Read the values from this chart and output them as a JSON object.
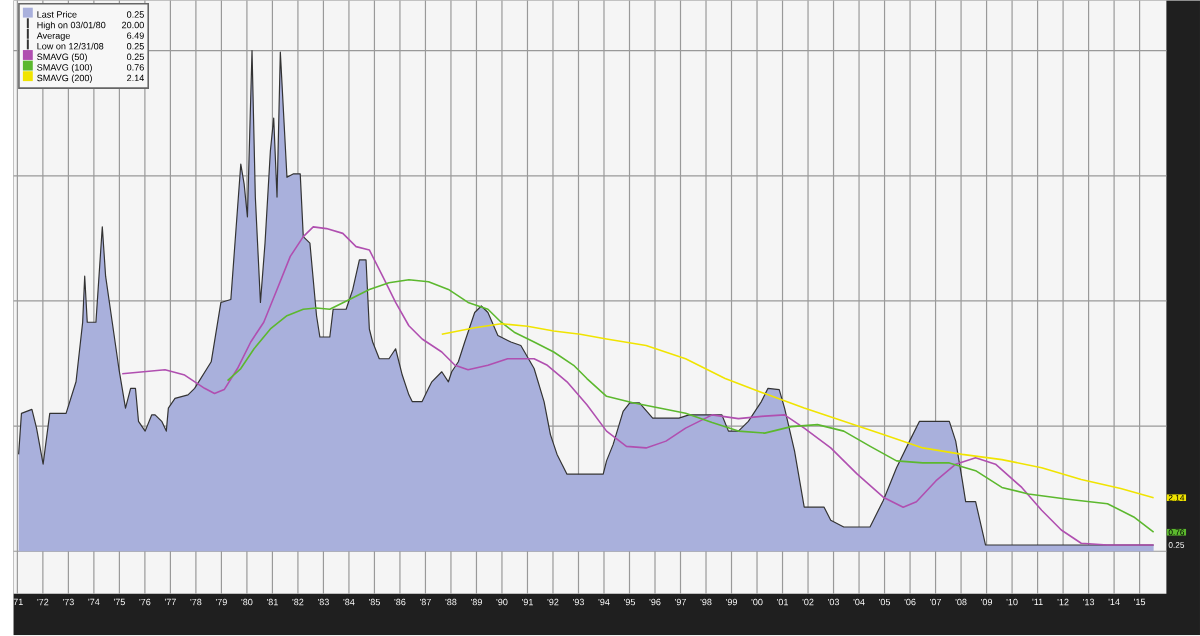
{
  "chart_data": {
    "type": "area",
    "xlim": [
      1970.85,
      2016.05
    ],
    "ylim": [
      -1.7,
      22
    ],
    "xticks": [
      {
        "value": 1971,
        "label": "'71"
      },
      {
        "value": 1972,
        "label": "'72"
      },
      {
        "value": 1973,
        "label": "'73"
      },
      {
        "value": 1974,
        "label": "'74"
      },
      {
        "value": 1975,
        "label": "'75"
      },
      {
        "value": 1976,
        "label": "'76"
      },
      {
        "value": 1977,
        "label": "'77"
      },
      {
        "value": 1978,
        "label": "'78"
      },
      {
        "value": 1979,
        "label": "'79"
      },
      {
        "value": 1980,
        "label": "'80"
      },
      {
        "value": 1981,
        "label": "'81"
      },
      {
        "value": 1982,
        "label": "'82"
      },
      {
        "value": 1983,
        "label": "'83"
      },
      {
        "value": 1984,
        "label": "'84"
      },
      {
        "value": 1985,
        "label": "'85"
      },
      {
        "value": 1986,
        "label": "'86"
      },
      {
        "value": 1987,
        "label": "'87"
      },
      {
        "value": 1988,
        "label": "'88"
      },
      {
        "value": 1989,
        "label": "'89"
      },
      {
        "value": 1990,
        "label": "'90"
      },
      {
        "value": 1991,
        "label": "'91"
      },
      {
        "value": 1992,
        "label": "'92"
      },
      {
        "value": 1993,
        "label": "'93"
      },
      {
        "value": 1994,
        "label": "'94"
      },
      {
        "value": 1995,
        "label": "'95"
      },
      {
        "value": 1996,
        "label": "'96"
      },
      {
        "value": 1997,
        "label": "'97"
      },
      {
        "value": 1998,
        "label": "'98"
      },
      {
        "value": 1999,
        "label": "'99"
      },
      {
        "value": 2000,
        "label": "'00"
      },
      {
        "value": 2001,
        "label": "'01"
      },
      {
        "value": 2002,
        "label": "'02"
      },
      {
        "value": 2003,
        "label": "'03"
      },
      {
        "value": 2004,
        "label": "'04"
      },
      {
        "value": 2005,
        "label": "'05"
      },
      {
        "value": 2006,
        "label": "'06"
      },
      {
        "value": 2007,
        "label": "'07"
      },
      {
        "value": 2008,
        "label": "'08"
      },
      {
        "value": 2009,
        "label": "'09"
      },
      {
        "value": 2010,
        "label": "'10"
      },
      {
        "value": 2011,
        "label": "'11"
      },
      {
        "value": 2012,
        "label": "'12"
      },
      {
        "value": 2013,
        "label": "'13"
      },
      {
        "value": 2014,
        "label": "'14"
      },
      {
        "value": 2015,
        "label": "'15"
      }
    ],
    "yticks": [
      {
        "value": 0.25,
        "label": "0.25"
      },
      {
        "value": 0.76,
        "label": "0.76"
      },
      {
        "value": 2.14,
        "label": "2.14"
      },
      {
        "value": 0,
        "label": null
      },
      {
        "value": 5,
        "label": null
      },
      {
        "value": 10,
        "label": null
      },
      {
        "value": 15,
        "label": null
      },
      {
        "value": 20,
        "label": null
      }
    ],
    "grid": true,
    "legend": "top left",
    "annotations": [
      "0.25",
      "High on 03/01/80",
      "20.00",
      "Average",
      "6.49",
      "Low on 12/31/08",
      "0.25",
      "0.25",
      "0.76",
      "2.14"
    ],
    "series": [
      {
        "name": "Last Price",
        "color": "#a9b0dc",
        "x": [
          1971.05,
          1971.16,
          1971.57,
          1971.75,
          1972.01,
          1972.27,
          1972.91,
          1973.3,
          1973.56,
          1973.64,
          1973.74,
          1974.08,
          1974.33,
          1974.46,
          1974.72,
          1974.98,
          1975.24,
          1975.44,
          1975.63,
          1975.75,
          1976.01,
          1976.27,
          1976.4,
          1976.66,
          1976.84,
          1976.92,
          1977.18,
          1977.69,
          1977.95,
          1978.6,
          1978.98,
          1979.37,
          1979.76,
          1979.89,
          1980.02,
          1980.2,
          1980.33,
          1980.53,
          1980.71,
          1980.92,
          1981.05,
          1981.18,
          1981.31,
          1981.57,
          1981.83,
          1982.09,
          1982.21,
          1982.47,
          1982.73,
          1982.86,
          1983.25,
          1983.38,
          1983.89,
          1984.15,
          1984.41,
          1984.67,
          1984.8,
          1984.93,
          1985.19,
          1985.57,
          1985.83,
          1986.09,
          1986.35,
          1986.48,
          1986.87,
          1987.12,
          1987.25,
          1987.64,
          1987.9,
          1988.03,
          1988.29,
          1988.54,
          1988.93,
          1989.19,
          1989.45,
          1989.84,
          1990.35,
          1990.74,
          1991.26,
          1991.65,
          1991.9,
          1992.16,
          1992.55,
          1993.97,
          1994.1,
          1994.36,
          1994.75,
          1995.01,
          1995.39,
          1995.91,
          1996.94,
          1997.33,
          1998.62,
          1998.88,
          1999.27,
          1999.66,
          2000.17,
          2000.43,
          2000.87,
          2001.08,
          2001.47,
          2001.85,
          2002.63,
          2002.89,
          2003.4,
          2004.43,
          2004.95,
          2005.47,
          2005.98,
          2006.37,
          2007.54,
          2007.79,
          2008.05,
          2008.18,
          2008.57,
          2008.96,
          2015.55
        ],
        "values": [
          3.87,
          5.51,
          5.67,
          4.93,
          3.48,
          5.51,
          5.51,
          6.77,
          9.15,
          10.99,
          9.15,
          9.15,
          12.96,
          10.99,
          9.15,
          7.3,
          5.72,
          6.51,
          6.51,
          5.19,
          4.8,
          5.45,
          5.45,
          5.19,
          4.8,
          5.72,
          6.11,
          6.25,
          6.51,
          7.57,
          9.94,
          10.06,
          15.47,
          14.68,
          13.36,
          20.0,
          14.15,
          9.94,
          12.31,
          15.99,
          17.31,
          14.15,
          19.94,
          14.94,
          15.08,
          15.08,
          12.57,
          12.31,
          9.41,
          8.56,
          8.56,
          9.67,
          9.67,
          10.46,
          11.64,
          11.64,
          8.88,
          8.36,
          7.69,
          7.69,
          8.09,
          7.04,
          6.25,
          5.98,
          5.98,
          6.51,
          6.77,
          7.17,
          6.77,
          7.17,
          7.57,
          8.36,
          9.54,
          9.8,
          9.54,
          8.62,
          8.36,
          8.22,
          7.3,
          5.98,
          4.66,
          3.87,
          3.08,
          3.08,
          3.61,
          4.27,
          5.59,
          5.93,
          5.93,
          5.32,
          5.32,
          5.45,
          5.45,
          4.8,
          4.8,
          5.19,
          5.98,
          6.51,
          6.46,
          5.72,
          4.01,
          1.76,
          1.76,
          1.24,
          0.97,
          0.97,
          2.03,
          3.34,
          4.4,
          5.19,
          5.19,
          4.4,
          2.82,
          1.98,
          1.98,
          0.25,
          0.25
        ]
      },
      {
        "name": "SMAVG (50)",
        "type": "line",
        "color": "#b04fb0",
        "x": [
          1975.11,
          1976.79,
          1977.56,
          1978.34,
          1978.73,
          1979.11,
          1979.63,
          1980.15,
          1980.66,
          1981.18,
          1981.7,
          1982.21,
          1982.6,
          1983.12,
          1983.76,
          1984.28,
          1984.8,
          1985.32,
          1985.83,
          1986.35,
          1986.87,
          1987.64,
          1988.16,
          1988.67,
          1989.45,
          1990.22,
          1991.26,
          1991.78,
          1992.55,
          1993.33,
          1994.1,
          1994.88,
          1995.65,
          1996.43,
          1997.2,
          1998.24,
          1999.27,
          2000.3,
          2001.08,
          2001.85,
          2002.89,
          2003.93,
          2004.95,
          2005.73,
          2006.25,
          2007.02,
          2007.79,
          2008.57,
          2009.35,
          2010.38,
          2011.16,
          2011.93,
          2012.71,
          2013.74,
          2015.55
        ],
        "values": [
          7.09,
          7.25,
          7.04,
          6.51,
          6.3,
          6.46,
          7.3,
          8.36,
          9.15,
          10.46,
          11.78,
          12.57,
          12.96,
          12.89,
          12.7,
          12.17,
          12.04,
          10.99,
          9.94,
          9.01,
          8.48,
          7.96,
          7.43,
          7.25,
          7.43,
          7.69,
          7.69,
          7.43,
          6.77,
          5.85,
          4.8,
          4.19,
          4.13,
          4.4,
          4.92,
          5.45,
          5.3,
          5.4,
          5.45,
          4.92,
          4.13,
          3.08,
          2.16,
          1.76,
          1.98,
          2.82,
          3.48,
          3.74,
          3.48,
          2.55,
          1.64,
          0.85,
          0.32,
          0.25,
          0.25
        ]
      },
      {
        "name": "SMAVG (100)",
        "type": "line",
        "color": "#5cb82e",
        "x": [
          1979.24,
          1979.76,
          1980.28,
          1980.92,
          1981.57,
          1982.21,
          1982.73,
          1983.25,
          1984.02,
          1984.8,
          1985.57,
          1986.35,
          1987.12,
          1987.9,
          1988.67,
          1989.45,
          1989.97,
          1990.48,
          1991.26,
          1992.03,
          1992.81,
          1993.33,
          1994.1,
          1995.13,
          1996.17,
          1997.2,
          1998.24,
          1999.27,
          2000.3,
          2001.34,
          2002.37,
          2003.4,
          2004.44,
          2005.47,
          2006.5,
          2007.54,
          2008.57,
          2009.6,
          2010.64,
          2012.19,
          2013.74,
          2014.77,
          2015.55
        ],
        "values": [
          6.82,
          7.3,
          8.09,
          8.88,
          9.41,
          9.67,
          9.72,
          9.67,
          10.06,
          10.46,
          10.73,
          10.85,
          10.77,
          10.46,
          9.94,
          9.67,
          9.15,
          8.75,
          8.36,
          7.96,
          7.43,
          6.9,
          6.19,
          5.93,
          5.72,
          5.51,
          5.14,
          4.8,
          4.72,
          4.98,
          5.06,
          4.8,
          4.19,
          3.61,
          3.53,
          3.53,
          3.22,
          2.55,
          2.29,
          2.08,
          1.9,
          1.37,
          0.76
        ]
      },
      {
        "name": "SMAVG (200)",
        "type": "line",
        "color": "#f0e400",
        "x": [
          1987.64,
          1988.93,
          1989.97,
          1991.0,
          1992.03,
          1993.07,
          1994.1,
          1995.65,
          1997.2,
          1998.75,
          2000.3,
          2001.85,
          2003.4,
          2004.95,
          2006.5,
          2008.05,
          2009.6,
          2011.16,
          2012.71,
          2014.26,
          2015.55
        ],
        "values": [
          8.67,
          8.93,
          9.09,
          8.99,
          8.8,
          8.67,
          8.48,
          8.22,
          7.69,
          6.9,
          6.3,
          5.72,
          5.19,
          4.66,
          4.13,
          3.87,
          3.66,
          3.34,
          2.87,
          2.51,
          2.14
        ]
      }
    ]
  }
}
